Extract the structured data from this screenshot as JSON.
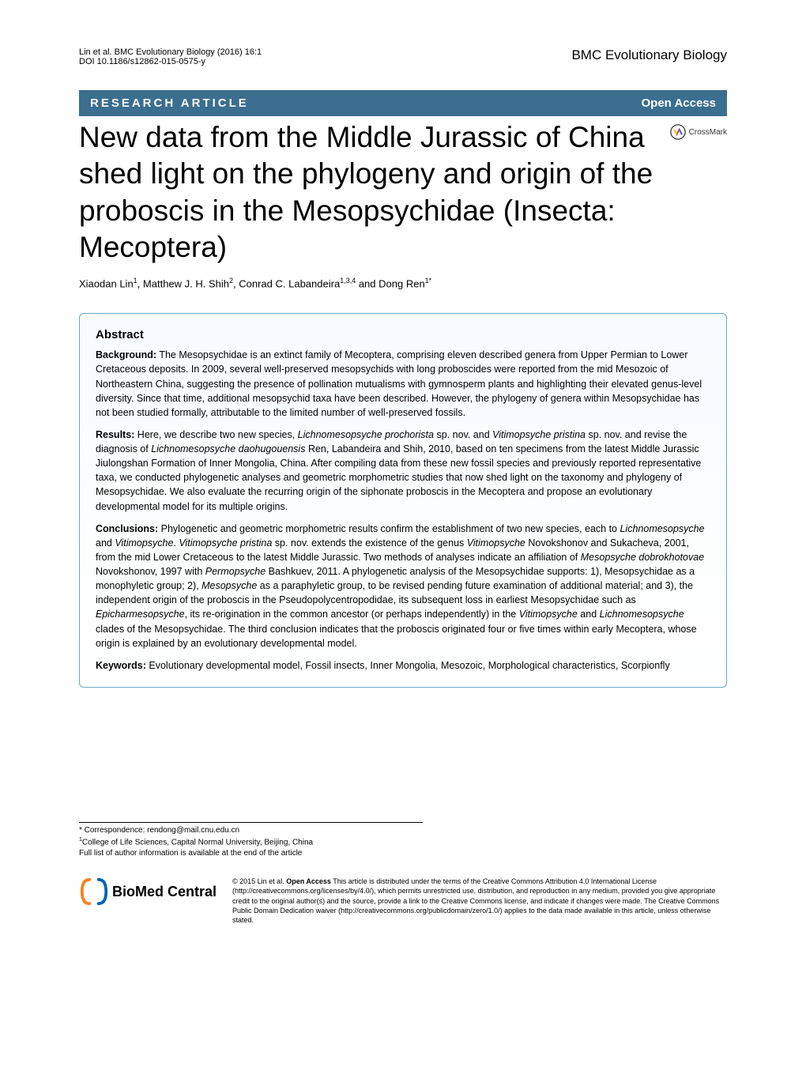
{
  "header": {
    "citation_line1": "Lin et al. BMC Evolutionary Biology (2016) 16:1",
    "citation_line2": "DOI 10.1186/s12862-015-0575-y",
    "journal_name": "BMC Evolutionary Biology"
  },
  "article_type_bar": {
    "left": "RESEARCH ARTICLE",
    "right": "Open Access"
  },
  "title": "New data from the Middle Jurassic of China shed light on the phylogeny and origin of the proboscis in the Mesopsychidae (Insecta: Mecoptera)",
  "crossmark_label": "CrossMark",
  "authors_html": "Xiaodan Lin<sup>1</sup>, Matthew J. H. Shih<sup>2</sup>, Conrad C. Labandeira<sup>1,3,4</sup> and Dong Ren<sup>1*</sup>",
  "abstract": {
    "heading": "Abstract",
    "background_label": "Background:",
    "background_text": " The Mesopsychidae is an extinct family of Mecoptera, comprising eleven described genera from Upper Permian to Lower Cretaceous deposits. In 2009, several well-preserved mesopsychids with long proboscides were reported from the mid Mesozoic of Northeastern China, suggesting the presence of pollination mutualisms with gymnosperm plants and highlighting their elevated genus-level diversity. Since that time, additional mesopsychid taxa have been described. However, the phylogeny of genera within Mesopsychidae has not been studied formally, attributable to the limited number of well-preserved fossils.",
    "results_label": "Results:",
    "results_text": " Here, we describe two new species, <em>Lichnomesopsyche prochorista</em> sp. nov. and <em>Vitimopsyche pristina</em> sp. nov. and revise the diagnosis of <em>Lichnomesopsyche daohugouensis</em> Ren, Labandeira and Shih, 2010, based on ten specimens from the latest Middle Jurassic Jiulongshan Formation of Inner Mongolia, China. After compiling data from these new fossil species and previously reported representative taxa, we conducted phylogenetic analyses and geometric morphometric studies that now shed light on the taxonomy and phylogeny of Mesopsychidae. We also evaluate the recurring origin of the siphonate proboscis in the Mecoptera and propose an evolutionary developmental model for its multiple origins.",
    "conclusions_label": "Conclusions:",
    "conclusions_text": " Phylogenetic and geometric morphometric results confirm the establishment of two new species, each to <em>Lichnomesopsyche</em> and <em>Vitimopsyche</em>. <em>Vitimopsyche pristina</em> sp. nov. extends the existence of the genus <em>Vitimopsyche</em> Novokshonov and Sukacheva, 2001, from the mid Lower Cretaceous to the latest Middle Jurassic. Two methods of analyses indicate an affiliation of <em>Mesopsyche dobrokhotovae</em> Novokshonov, 1997 with <em>Permopsyche</em> Bashkuev, 2011. A phylogenetic analysis of the Mesopsychidae supports: 1), Mesopsychidae as a monophyletic group; 2), <em>Mesopsyche</em> as a paraphyletic group, to be revised pending future examination of additional material; and 3), the independent origin of the proboscis in the Pseudopolycentropodidae, its subsequent loss in earliest Mesopsychidae such as <em>Epicharmesopsyche</em>, its re-origination in the common ancestor (or perhaps independently) in the <em>Vitimopsyche</em> and <em>Lichnomesopsyche</em> clades of the Mesopsychidae. The third conclusion indicates that the proboscis originated four or five times within early Mecoptera, whose origin is explained by an evolutionary developmental model.",
    "keywords_label": "Keywords:",
    "keywords_text": " Evolutionary developmental model, Fossil insects, Inner Mongolia, Mesozoic, Morphological characteristics, Scorpionfly"
  },
  "footer": {
    "correspondence": "* Correspondence: rendong@mail.cnu.edu.cn",
    "affiliation": "<sup>1</sup>College of Life Sciences, Capital Normal University, Beijing, China",
    "full_list": "Full list of author information is available at the end of the article"
  },
  "publisher": {
    "logo_text": "BioMed Central",
    "license": "© 2015 Lin et al. <strong>Open Access</strong> This article is distributed under the terms of the Creative Commons Attribution 4.0 International License (http://creativecommons.org/licenses/by/4.0/), which permits unrestricted use, distribution, and reproduction in any medium, provided you give appropriate credit to the original author(s) and the source, provide a link to the Creative Commons license, and indicate if changes were made. The Creative Commons Public Domain Dedication waiver (http://creativecommons.org/publicdomain/zero/1.0/) applies to the data made available in this article, unless otherwise stated."
  },
  "colors": {
    "bar_bg": "#3b6e8f",
    "bar_text": "#ffffff",
    "abstract_border": "#6ca6c1",
    "bmc_orange": "#f58220",
    "bmc_blue": "#0066b3",
    "crossmark_red": "#cc3333",
    "crossmark_yellow": "#ffcc33",
    "crossmark_blue": "#3366cc"
  }
}
